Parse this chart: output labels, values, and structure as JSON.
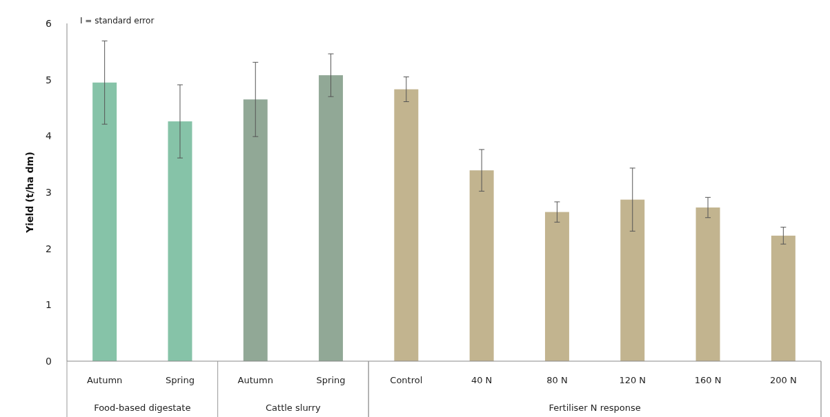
{
  "chart_data": {
    "type": "bar",
    "ylabel": "Yield (t/ha dm)",
    "categories": [
      "Autumn",
      "Spring",
      "Autumn",
      "Spring",
      "Control",
      "40 N",
      "80 N",
      "120 N",
      "160 N",
      "200 N"
    ],
    "series": [
      {
        "color": "#86c3a8",
        "values": [
          4.95,
          4.26,
          null,
          null,
          null,
          null,
          null,
          null,
          null,
          null
        ],
        "errors": [
          0.74,
          0.65,
          null,
          null,
          null,
          null,
          null,
          null,
          null,
          null
        ]
      },
      {
        "color": "#91a896",
        "values": [
          null,
          null,
          4.65,
          5.08,
          null,
          null,
          null,
          null,
          null,
          null
        ],
        "errors": [
          null,
          null,
          0.66,
          0.38,
          null,
          null,
          null,
          null,
          null,
          null
        ]
      },
      {
        "color": "#c2b48f",
        "values": [
          null,
          null,
          null,
          null,
          4.83,
          3.39,
          2.65,
          2.87,
          2.73,
          2.23
        ],
        "errors": [
          null,
          null,
          null,
          null,
          0.22,
          0.37,
          0.18,
          0.56,
          0.18,
          0.15
        ]
      }
    ],
    "ylim": [
      0,
      6
    ],
    "yticks": [
      0,
      1,
      2,
      3,
      4,
      5,
      6
    ],
    "grid": false,
    "legend": false,
    "annotations": [
      "I = standard error",
      "Food-based digestate",
      "Cattle slurry",
      "Fertiliser N response"
    ]
  }
}
